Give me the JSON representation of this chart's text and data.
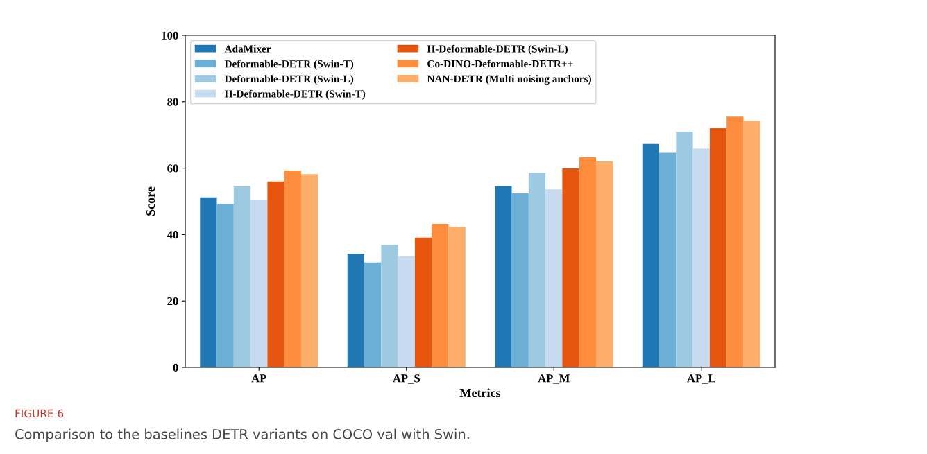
{
  "chart_data": {
    "type": "bar",
    "xlabel": "Metrics",
    "ylabel": "Score",
    "categories": [
      "AP",
      "AP_S",
      "AP_M",
      "AP_L"
    ],
    "series": [
      {
        "name": "AdaMixer",
        "color": "#2077b4",
        "values": [
          51.2,
          34.2,
          54.6,
          67.3
        ]
      },
      {
        "name": "Deformable-DETR (Swin-T)",
        "color": "#6baed6",
        "values": [
          49.2,
          31.6,
          52.4,
          64.6
        ]
      },
      {
        "name": "Deformable-DETR (Swin-L)",
        "color": "#9ecae1",
        "values": [
          54.5,
          36.9,
          58.6,
          71.0
        ]
      },
      {
        "name": "H-Deformable-DETR (Swin-T)",
        "color": "#c6dbef",
        "values": [
          50.5,
          33.4,
          53.6,
          65.9
        ]
      },
      {
        "name": "H-Deformable-DETR (Swin-L)",
        "color": "#e6550d",
        "values": [
          56.0,
          39.1,
          59.9,
          72.1
        ]
      },
      {
        "name": "Co-DINO-Deformable-DETR++",
        "color": "#fd8d3c",
        "values": [
          59.3,
          43.2,
          63.3,
          75.5
        ]
      },
      {
        "name": "NAN-DETR (Multi noising anchors)",
        "color": "#fdae6b",
        "values": [
          58.2,
          42.4,
          62.0,
          74.2
        ]
      }
    ],
    "ylim": [
      0,
      100
    ],
    "yticks": [
      0,
      20,
      40,
      60,
      80,
      100
    ],
    "legend": "top left",
    "grid": false,
    "annotations": [
      "FIGURE 6",
      "Comparison to the baselines DETR variants on COCO val with Swin."
    ]
  }
}
